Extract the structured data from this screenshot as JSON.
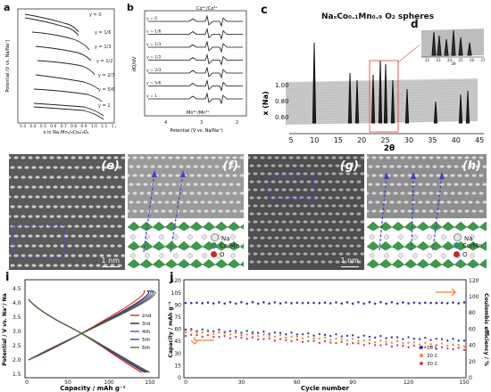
{
  "panel_a": {
    "label": "a",
    "ylabel": "Potential (V vs. Na/Na⁺)",
    "xlabel": "x in NaₓMn₁/₃Co₂/₃O₂",
    "xticks": [
      "0.3",
      "0.4",
      "0.5",
      "0.6",
      "0.7",
      "0.8",
      "0.9",
      "1.0",
      "1.1",
      "1.2"
    ],
    "curves": [
      "y = 0",
      "y = 1/6",
      "y = 1/3",
      "y = 1/2",
      "y = 2/3",
      "y = 5/6",
      "y = 1"
    ]
  },
  "panel_b": {
    "label": "b",
    "ylabel": "dQ/dV",
    "xlabel": "Potential (V vs. Na/Na⁺)",
    "xticks": [
      "4",
      "3",
      "2"
    ],
    "top_annotation": "Co⁴⁺/Co³⁺",
    "bottom_annotation": "Mn⁴⁺/Mn³⁺",
    "curves": [
      "y = 0",
      "y = 1/6",
      "y = 1/3",
      "y = 1/2",
      "y = 2/3",
      "y = 5/6",
      "y = 1"
    ]
  },
  "panel_c": {
    "label": "c",
    "title": "NaₓCo₀.₁Mn₀.₉ O₂ spheres",
    "ylabel": "x (Na)",
    "xlabel": "2θ",
    "yticks": [
      "1.00",
      "0.80",
      "0.60"
    ],
    "xticks": [
      "5",
      "10",
      "15",
      "20",
      "25",
      "30",
      "35",
      "40",
      "45"
    ]
  },
  "panel_d": {
    "label": "d",
    "xticks": [
      "22",
      "23",
      "24",
      "25",
      "26",
      "27"
    ],
    "xlabel": "2θ"
  },
  "tem_panels": [
    {
      "label": "(e)",
      "scale": "1 nm"
    },
    {
      "label": "(f)"
    },
    {
      "label": "(g)",
      "scale": "1 nm"
    },
    {
      "label": "(h)"
    }
  ],
  "structure_legend": [
    "Na",
    "Co/Mn",
    "O"
  ],
  "panel_i": {
    "label": "i",
    "ylabel": "Potential / V vs. Na⁺/ Na",
    "xlabel": "Capacity / mAh g⁻¹",
    "xticks": [
      "0",
      "50",
      "100",
      "150"
    ],
    "yticks": [
      "1.5",
      "2.0",
      "2.5",
      "3.0",
      "3.5",
      "4.0",
      "4.5"
    ],
    "legend": [
      "2nd",
      "3rd",
      "4th",
      "5th",
      "6th"
    ],
    "colors": [
      "#d62728",
      "#2a2a2a",
      "#7b3fa0",
      "#1f4fa0",
      "#556b2f"
    ]
  },
  "panel_j": {
    "label": "j",
    "ylabel_left": "Capacity / mAh g⁻¹",
    "ylabel_right": "Coulombic efficiency / %",
    "xlabel": "Cycle number",
    "xticks": [
      "0",
      "30",
      "60",
      "90",
      "120",
      "150"
    ],
    "yticks_left": [
      "0",
      "15",
      "30",
      "45",
      "60",
      "75",
      "90",
      "105",
      "120"
    ],
    "yticks_right": [
      "0",
      "20",
      "40",
      "60",
      "80",
      "100",
      "120"
    ],
    "legend": [
      "10 C",
      "20 C",
      "30 C"
    ],
    "colors": [
      "#3a3aa0",
      "#f0883a",
      "#d04060"
    ]
  }
}
